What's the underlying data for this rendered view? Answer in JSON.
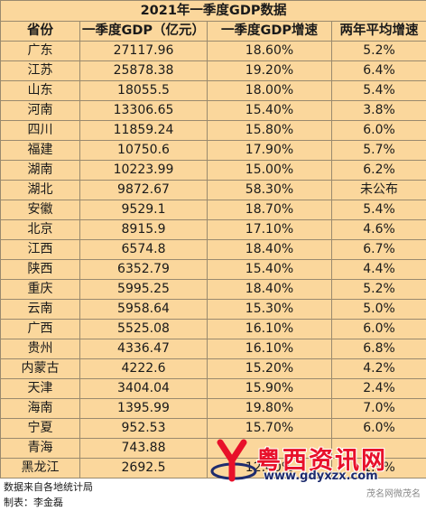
{
  "title": "2021年一季度GDP数据",
  "headers": [
    "省份",
    "一季度GDP（亿元）",
    "一季度GDP增速",
    "两年平均增速"
  ],
  "rows": [
    [
      "广东",
      "27117.96",
      "18.60%",
      "5.2%"
    ],
    [
      "江苏",
      "25878.38",
      "19.20%",
      "6.4%"
    ],
    [
      "山东",
      "18055.5",
      "18.00%",
      "5.4%"
    ],
    [
      "河南",
      "13306.65",
      "15.40%",
      "3.8%"
    ],
    [
      "四川",
      "11859.24",
      "15.80%",
      "6.0%"
    ],
    [
      "福建",
      "10750.6",
      "17.90%",
      "5.7%"
    ],
    [
      "湖南",
      "10223.99",
      "15.00%",
      "6.2%"
    ],
    [
      "湖北",
      "9872.67",
      "58.30%",
      "未公布"
    ],
    [
      "安徽",
      "9529.1",
      "18.70%",
      "5.4%"
    ],
    [
      "北京",
      "8915.9",
      "17.10%",
      "4.6%"
    ],
    [
      "江西",
      "6574.8",
      "18.40%",
      "6.7%"
    ],
    [
      "陕西",
      "6352.79",
      "15.40%",
      "4.4%"
    ],
    [
      "重庆",
      "5995.25",
      "18.40%",
      "5.2%"
    ],
    [
      "云南",
      "5958.64",
      "15.30%",
      "5.0%"
    ],
    [
      "广西",
      "5525.08",
      "16.10%",
      "6.0%"
    ],
    [
      "贵州",
      "4336.47",
      "16.10%",
      "6.8%"
    ],
    [
      "内蒙古",
      "4222.6",
      "15.20%",
      "4.2%"
    ],
    [
      "天津",
      "3404.04",
      "15.90%",
      "2.4%"
    ],
    [
      "海南",
      "1395.99",
      "19.80%",
      "7.0%"
    ],
    [
      "宁夏",
      "952.53",
      "15.70%",
      "6.0%"
    ],
    [
      "青海",
      "743.88",
      "",
      ""
    ],
    [
      "黑龙江",
      "2692.5",
      "12.40%",
      "1.5%"
    ]
  ],
  "footer": {
    "source": "数据来自各地统计局",
    "author": "制表：李金磊"
  },
  "watermark": {
    "logo_letter": "Y",
    "name": "粤西资讯网",
    "url": "www.gdyxzx.com",
    "credit": "茂名网微茂名"
  },
  "colors": {
    "table_bg": "#fbd79c",
    "grid": "#9a8a6e",
    "watermark_red": "#e8102a",
    "watermark_blue": "#1e2c6e"
  }
}
